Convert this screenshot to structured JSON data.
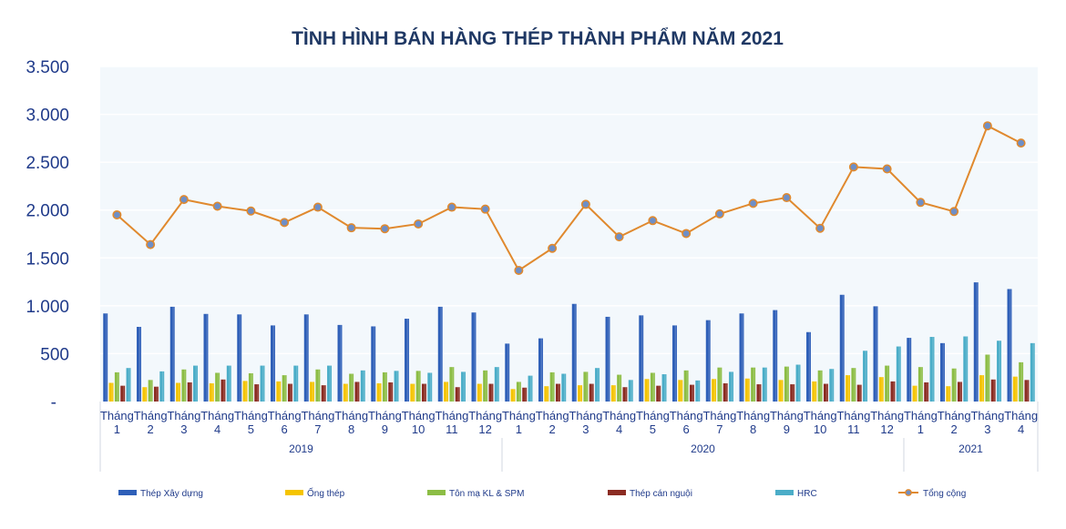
{
  "chart_data": {
    "type": "bar",
    "title": "TÌNH HÌNH BÁN HÀNG THÉP THÀNH PHẨM NĂM 2021",
    "xlabel": "",
    "ylabel": "",
    "ylim": [
      0,
      3500
    ],
    "yticks": [
      "-",
      "500",
      "1.000",
      "1.500",
      "2.000",
      "2.500",
      "3.000",
      "3.500"
    ],
    "category_prefix": "Tháng",
    "groups": [
      {
        "label": "2019",
        "months": [
          "1",
          "2",
          "3",
          "4",
          "5",
          "6",
          "7",
          "8",
          "9",
          "10",
          "11",
          "12"
        ]
      },
      {
        "label": "2020",
        "months": [
          "1",
          "2",
          "3",
          "4",
          "5",
          "6",
          "7",
          "8",
          "9",
          "10",
          "11",
          "12"
        ]
      },
      {
        "label": "2021",
        "months": [
          "1",
          "2",
          "3",
          "4"
        ]
      }
    ],
    "legend_position": "bottom",
    "series": [
      {
        "name": "Thép Xây dựng",
        "type": "bar",
        "color": "#2e5fb8",
        "values": [
          920,
          780,
          990,
          915,
          910,
          795,
          910,
          800,
          785,
          865,
          990,
          930,
          605,
          660,
          1020,
          885,
          900,
          795,
          850,
          920,
          955,
          725,
          1115,
          995,
          665,
          610,
          1245,
          1175
        ]
      },
      {
        "name": "Ống thép",
        "type": "bar",
        "color": "#f5c400",
        "values": [
          195,
          150,
          195,
          190,
          215,
          210,
          205,
          185,
          190,
          185,
          205,
          185,
          130,
          160,
          170,
          170,
          235,
          225,
          235,
          240,
          225,
          210,
          275,
          255,
          165,
          160,
          275,
          260
        ]
      },
      {
        "name": "Tôn mạ KL & SPM",
        "type": "bar",
        "color": "#8cbd45",
        "values": [
          305,
          225,
          335,
          300,
          295,
          275,
          335,
          290,
          305,
          320,
          360,
          325,
          205,
          305,
          310,
          280,
          300,
          325,
          355,
          355,
          365,
          325,
          350,
          375,
          360,
          345,
          490,
          410
        ]
      },
      {
        "name": "Thép cán nguội",
        "type": "bar",
        "color": "#8b2c22",
        "values": [
          165,
          155,
          200,
          230,
          180,
          185,
          170,
          205,
          200,
          185,
          150,
          185,
          145,
          185,
          185,
          150,
          165,
          175,
          190,
          180,
          180,
          185,
          175,
          210,
          200,
          205,
          230,
          225
        ]
      },
      {
        "name": "HRC",
        "type": "bar",
        "color": "#4badc8",
        "values": [
          350,
          315,
          375,
          375,
          375,
          375,
          375,
          325,
          320,
          300,
          310,
          360,
          270,
          290,
          350,
          225,
          285,
          220,
          310,
          355,
          385,
          340,
          530,
          575,
          675,
          680,
          635,
          610
        ]
      },
      {
        "name": "Tổng cộng",
        "type": "line",
        "color": "#e0892e",
        "values": [
          1950,
          1640,
          2110,
          2040,
          1990,
          1870,
          2030,
          1815,
          1805,
          1855,
          2030,
          2010,
          1370,
          1600,
          2060,
          1720,
          1890,
          1755,
          1960,
          2070,
          2130,
          1810,
          2450,
          2430,
          2080,
          1985,
          2880,
          2700
        ]
      }
    ]
  }
}
